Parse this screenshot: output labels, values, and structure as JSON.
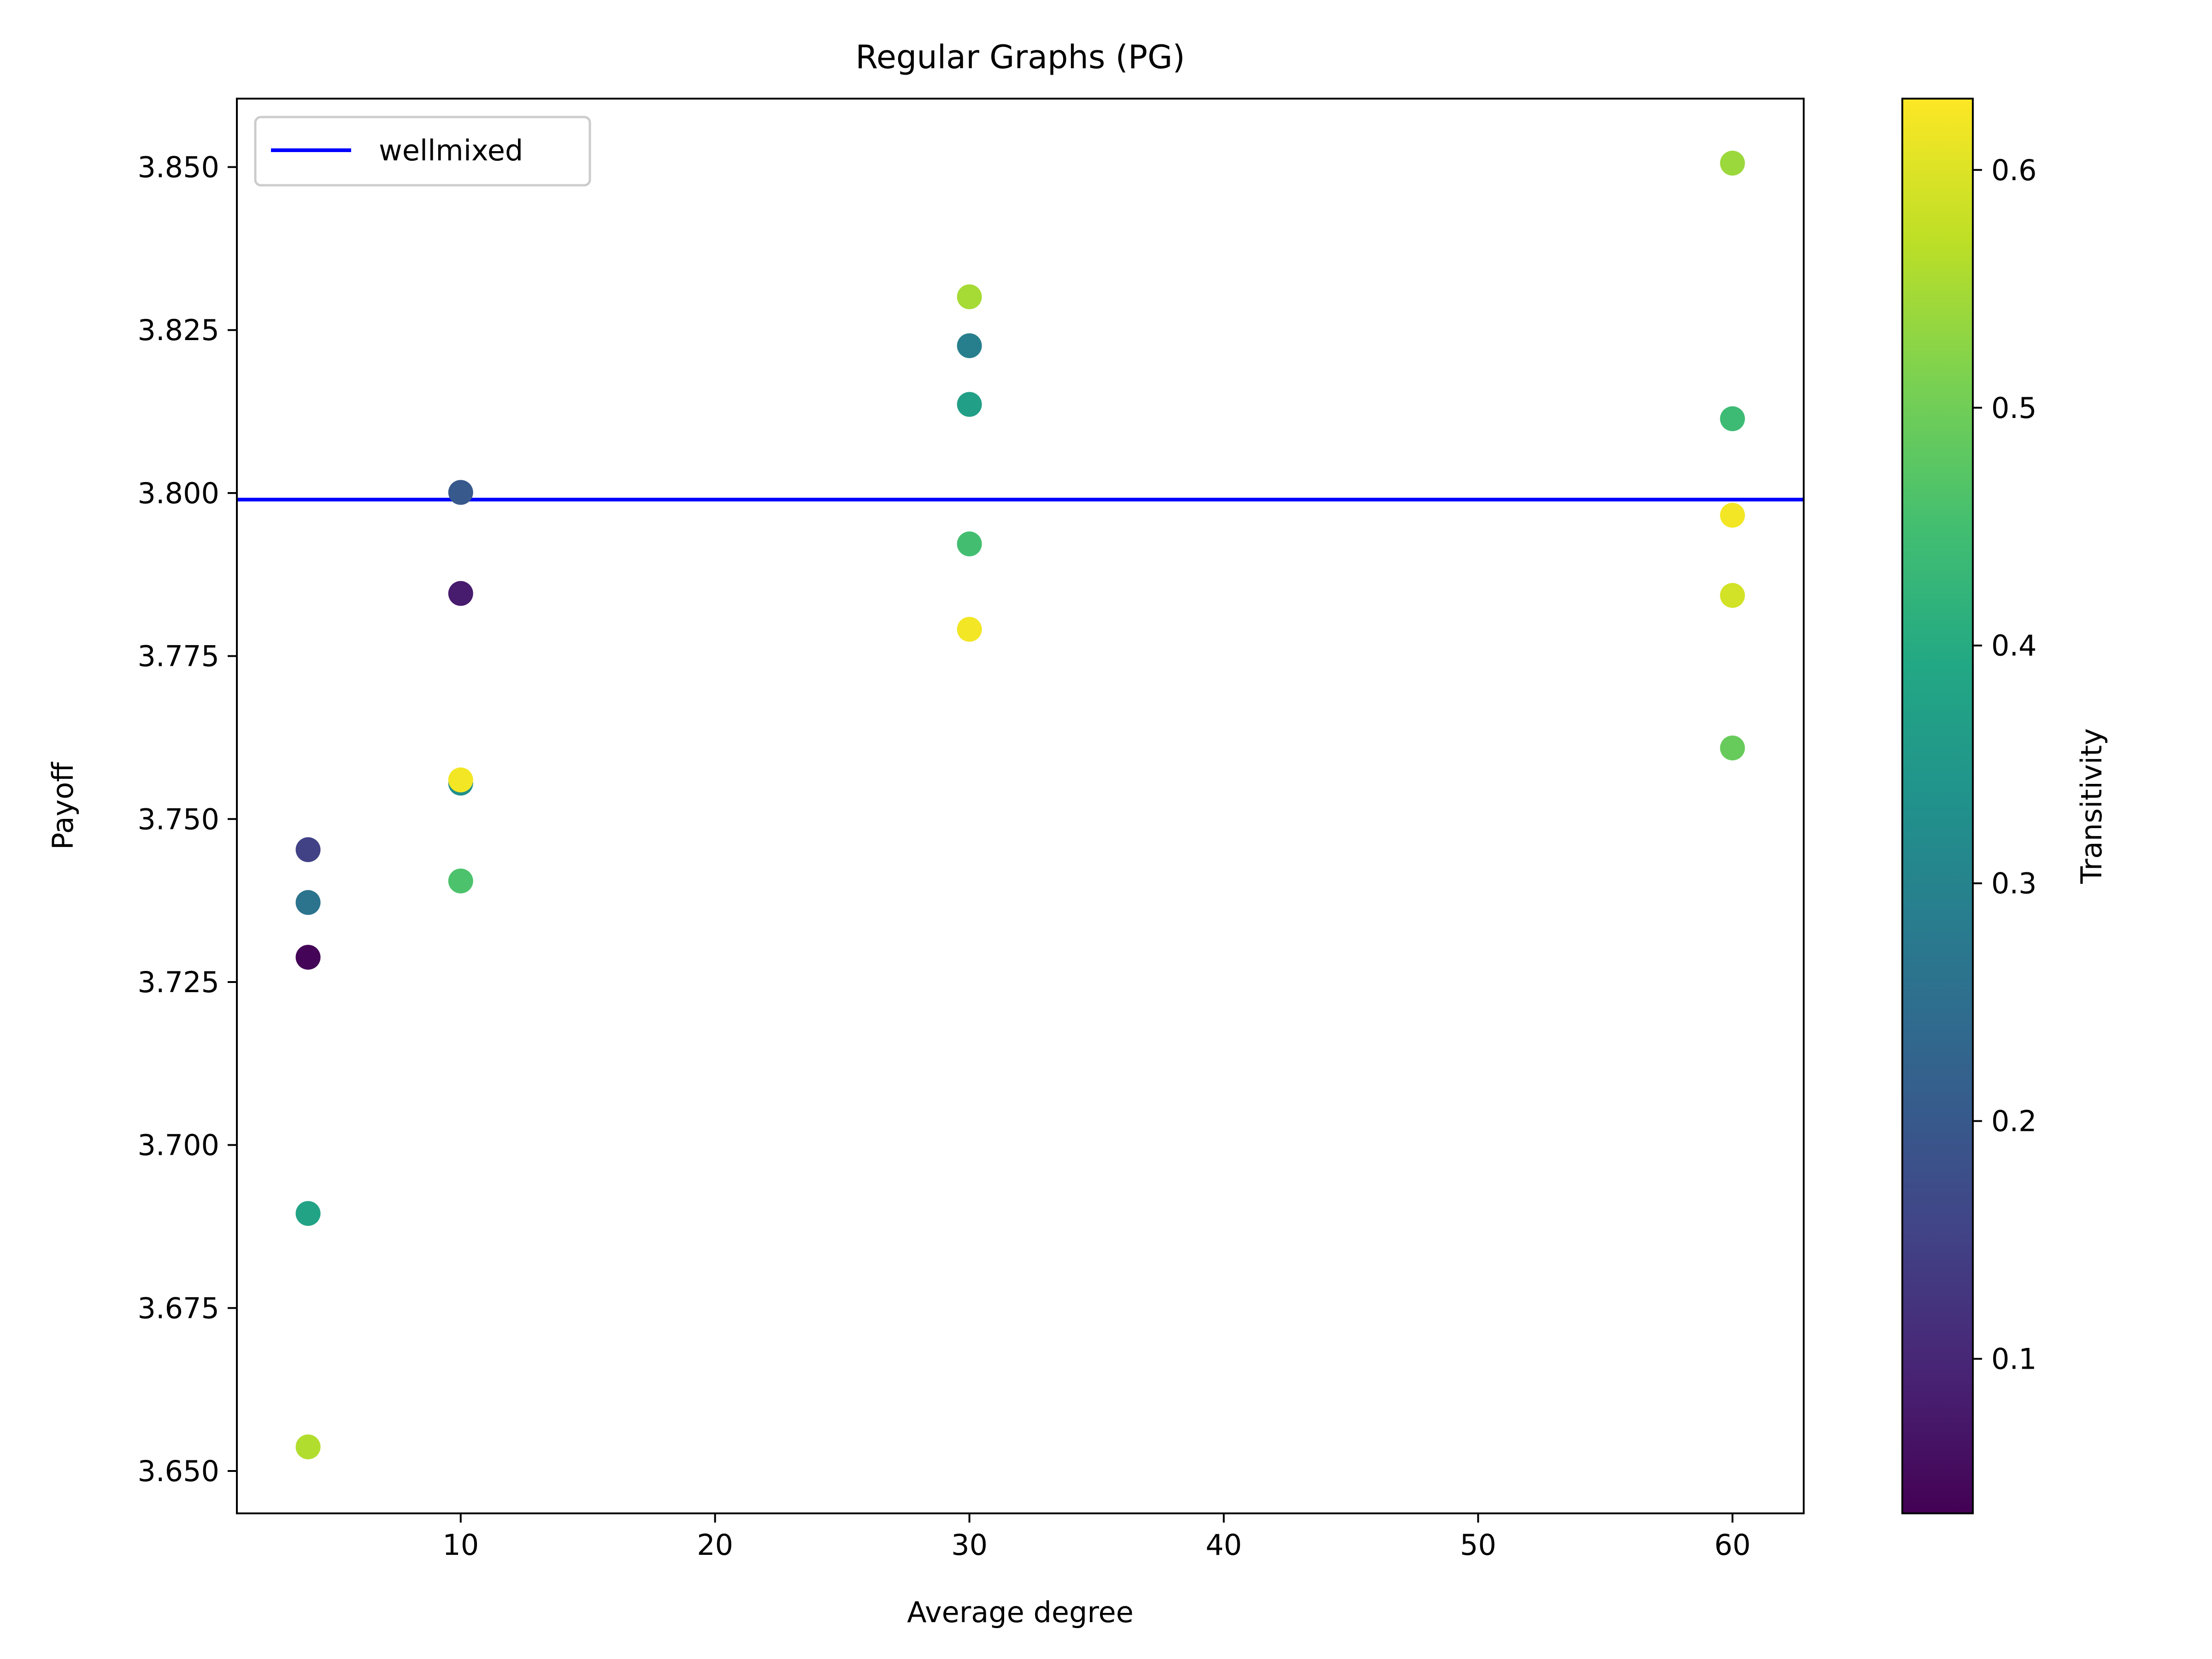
{
  "chart_data": {
    "type": "scatter",
    "title": "Regular Graphs (PG)",
    "xlabel": "Average degree",
    "ylabel": "Payoff",
    "xlim": [
      1.2,
      62.8
    ],
    "ylim": [
      3.6435,
      3.8605
    ],
    "x_ticks": [
      10,
      20,
      30,
      40,
      50,
      60
    ],
    "x_tick_labels": [
      "10",
      "20",
      "30",
      "40",
      "50",
      "60"
    ],
    "y_ticks": [
      3.65,
      3.675,
      3.7,
      3.725,
      3.75,
      3.775,
      3.8,
      3.825,
      3.85
    ],
    "y_tick_labels": [
      "3.650",
      "3.675",
      "3.700",
      "3.725",
      "3.750",
      "3.775",
      "3.800",
      "3.825",
      "3.850"
    ],
    "grid": false,
    "legend": {
      "position": "top-left",
      "entries": [
        "wellmixed"
      ]
    },
    "reference_line": {
      "name": "wellmixed",
      "y": 3.799,
      "color": "#0000ff"
    },
    "colorbar": {
      "label": "Transitivity",
      "colormap": "viridis",
      "range": [
        0.035,
        0.63
      ],
      "ticks": [
        0.1,
        0.2,
        0.3,
        0.4,
        0.5,
        0.6
      ],
      "tick_labels": [
        "0.1",
        "0.2",
        "0.3",
        "0.4",
        "0.5",
        "0.6"
      ]
    },
    "points": [
      {
        "x": 4,
        "y": 3.7453,
        "c": 0.15
      },
      {
        "x": 4,
        "y": 3.7372,
        "c": 0.26
      },
      {
        "x": 4,
        "y": 3.7288,
        "c": 0.04
      },
      {
        "x": 4,
        "y": 3.6895,
        "c": 0.38
      },
      {
        "x": 4,
        "y": 3.6537,
        "c": 0.56
      },
      {
        "x": 10,
        "y": 3.8001,
        "c": 0.2
      },
      {
        "x": 10,
        "y": 3.7846,
        "c": 0.08
      },
      {
        "x": 10,
        "y": 3.7555,
        "c": 0.33
      },
      {
        "x": 10,
        "y": 3.756,
        "c": 0.62
      },
      {
        "x": 10,
        "y": 3.7405,
        "c": 0.46
      },
      {
        "x": 30,
        "y": 3.8301,
        "c": 0.55
      },
      {
        "x": 30,
        "y": 3.8226,
        "c": 0.29
      },
      {
        "x": 30,
        "y": 3.8136,
        "c": 0.37
      },
      {
        "x": 30,
        "y": 3.7922,
        "c": 0.45
      },
      {
        "x": 30,
        "y": 3.7791,
        "c": 0.62
      },
      {
        "x": 60,
        "y": 3.8506,
        "c": 0.54
      },
      {
        "x": 60,
        "y": 3.8114,
        "c": 0.44
      },
      {
        "x": 60,
        "y": 3.7966,
        "c": 0.62
      },
      {
        "x": 60,
        "y": 3.7843,
        "c": 0.59
      },
      {
        "x": 60,
        "y": 3.7609,
        "c": 0.49
      }
    ]
  }
}
